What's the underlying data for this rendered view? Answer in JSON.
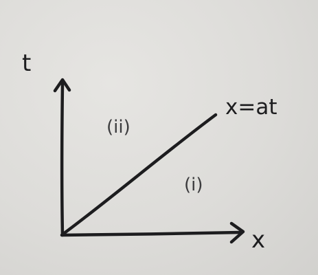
{
  "diagram": {
    "axis_labels": {
      "vertical": "t",
      "horizontal": "x"
    },
    "line_label": "x=at",
    "regions": {
      "upper": "(ii)",
      "lower": "(i)"
    }
  }
}
